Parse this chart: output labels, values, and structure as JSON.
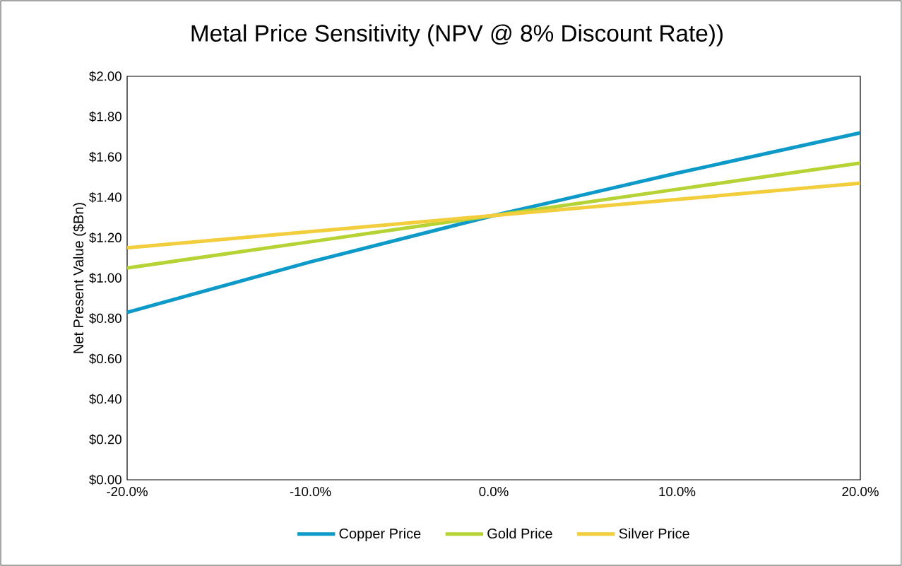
{
  "chart_data": {
    "type": "line",
    "title": "Metal Price Sensitivity (NPV @ 8% Discount Rate))",
    "ylabel": "Net Present Value ($Bn)",
    "x": [
      -20,
      -10,
      0,
      10,
      20
    ],
    "series": [
      {
        "name": "Copper Price",
        "color": "#0e9ac8",
        "values": [
          0.83,
          1.08,
          1.31,
          1.52,
          1.72
        ]
      },
      {
        "name": "Gold Price",
        "color": "#b5d334",
        "values": [
          1.05,
          1.18,
          1.31,
          1.44,
          1.57
        ]
      },
      {
        "name": "Silver Price",
        "color": "#f2cd3c",
        "values": [
          1.15,
          1.23,
          1.31,
          1.39,
          1.47
        ]
      }
    ],
    "xlim": [
      -20,
      20
    ],
    "xticks": [
      {
        "value": -20,
        "label": "-20.0%"
      },
      {
        "value": -10,
        "label": "-10.0%"
      },
      {
        "value": 0,
        "label": "0.0%"
      },
      {
        "value": 10,
        "label": "10.0%"
      },
      {
        "value": 20,
        "label": "20.0%"
      }
    ],
    "ylim": [
      0,
      2
    ],
    "yticks": [
      {
        "value": 0,
        "label": "$0.00"
      },
      {
        "value": 0.2,
        "label": "$0.20"
      },
      {
        "value": 0.4,
        "label": "$0.40"
      },
      {
        "value": 0.6,
        "label": "$0.60"
      },
      {
        "value": 0.8,
        "label": "$0.80"
      },
      {
        "value": 1.0,
        "label": "$1.00"
      },
      {
        "value": 1.2,
        "label": "$1.20"
      },
      {
        "value": 1.4,
        "label": "$1.40"
      },
      {
        "value": 1.6,
        "label": "$1.60"
      },
      {
        "value": 1.8,
        "label": "$1.80"
      },
      {
        "value": 2.0,
        "label": "$2.00"
      }
    ],
    "grid": false,
    "legend": "bottom",
    "marker": "none",
    "line_style": "solid"
  }
}
